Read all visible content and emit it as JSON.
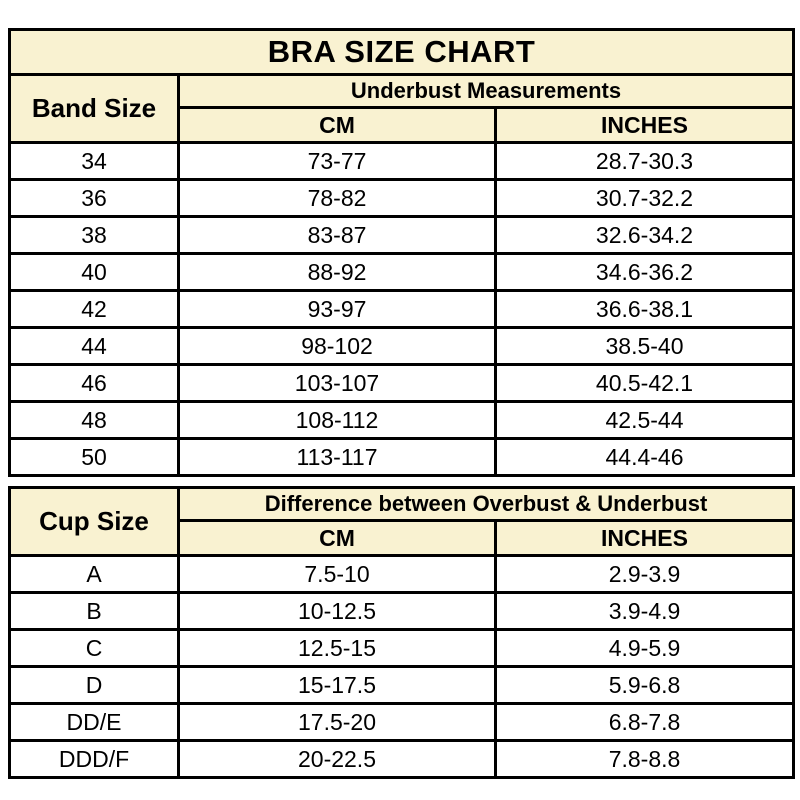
{
  "title": "BRA SIZE CHART",
  "colors": {
    "header_bg": "#F9F2D1",
    "border": "#000000",
    "row_bg": "#FFFFFF",
    "text": "#000000"
  },
  "band_table": {
    "corner_label": "Band Size",
    "group_header": "Underbust Measurements",
    "columns": {
      "cm": "CM",
      "inches": "INCHES"
    },
    "rows": [
      {
        "band": "34",
        "cm": "73-77",
        "inches": "28.7-30.3"
      },
      {
        "band": "36",
        "cm": "78-82",
        "inches": "30.7-32.2"
      },
      {
        "band": "38",
        "cm": "83-87",
        "inches": "32.6-34.2"
      },
      {
        "band": "40",
        "cm": "88-92",
        "inches": "34.6-36.2"
      },
      {
        "band": "42",
        "cm": "93-97",
        "inches": "36.6-38.1"
      },
      {
        "band": "44",
        "cm": "98-102",
        "inches": "38.5-40"
      },
      {
        "band": "46",
        "cm": "103-107",
        "inches": "40.5-42.1"
      },
      {
        "band": "48",
        "cm": "108-112",
        "inches": "42.5-44"
      },
      {
        "band": "50",
        "cm": "113-117",
        "inches": "44.4-46"
      }
    ]
  },
  "cup_table": {
    "corner_label": "Cup Size",
    "group_header": "Difference between Overbust & Underbust",
    "columns": {
      "cm": "CM",
      "inches": "INCHES"
    },
    "rows": [
      {
        "cup": "A",
        "cm": "7.5-10",
        "inches": "2.9-3.9"
      },
      {
        "cup": "B",
        "cm": "10-12.5",
        "inches": "3.9-4.9"
      },
      {
        "cup": "C",
        "cm": "12.5-15",
        "inches": "4.9-5.9"
      },
      {
        "cup": "D",
        "cm": "15-17.5",
        "inches": "5.9-6.8"
      },
      {
        "cup": "DD/E",
        "cm": "17.5-20",
        "inches": "6.8-7.8"
      },
      {
        "cup": "DDD/F",
        "cm": "20-22.5",
        "inches": "7.8-8.8"
      }
    ]
  }
}
